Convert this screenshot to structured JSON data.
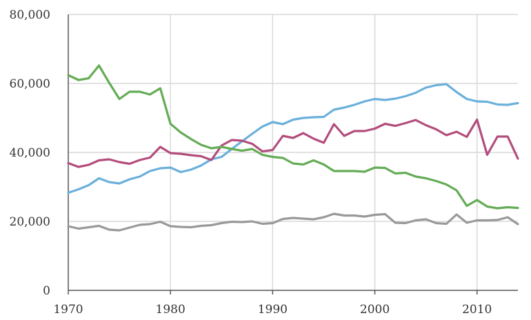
{
  "chart_data": {
    "type": "line",
    "title": "",
    "xlabel": "",
    "ylabel": "",
    "xlim": [
      1970,
      2014
    ],
    "ylim": [
      0,
      80000
    ],
    "x_ticks": [
      1970,
      1980,
      1990,
      2000,
      2010
    ],
    "y_ticks": [
      0,
      20000,
      40000,
      60000,
      80000
    ],
    "x_tick_labels": [
      "1970",
      "1980",
      "1990",
      "2000",
      "2010"
    ],
    "y_tick_labels": [
      "0",
      "20,000",
      "40,000",
      "60,000",
      "80,000"
    ],
    "grid": "vertical and horizontal",
    "legend": "none",
    "x": [
      1970,
      1971,
      1972,
      1973,
      1974,
      1975,
      1976,
      1977,
      1978,
      1979,
      1980,
      1981,
      1982,
      1983,
      1984,
      1985,
      1986,
      1987,
      1988,
      1989,
      1990,
      1991,
      1992,
      1993,
      1994,
      1995,
      1996,
      1997,
      1998,
      1999,
      2000,
      2001,
      2002,
      2003,
      2004,
      2005,
      2006,
      2007,
      2008,
      2009,
      2010,
      2011,
      2012,
      2013,
      2014
    ],
    "series": [
      {
        "color": "#6ab0db",
        "values": [
          28300,
          29300,
          30500,
          32500,
          31400,
          31000,
          32200,
          33000,
          34600,
          35400,
          35600,
          34300,
          35000,
          36200,
          38000,
          38700,
          41000,
          43200,
          45400,
          47500,
          48800,
          48200,
          49500,
          50000,
          50200,
          50300,
          52400,
          53000,
          53800,
          54800,
          55500,
          55200,
          55600,
          56300,
          57300,
          58800,
          59500,
          59800,
          57500,
          55500,
          54800,
          54700,
          53900,
          53800,
          54300
        ]
      },
      {
        "color": "#b34d7c",
        "values": [
          36900,
          35800,
          36400,
          37700,
          38000,
          37200,
          36700,
          37800,
          38500,
          41600,
          39800,
          39600,
          39200,
          38900,
          37800,
          42000,
          43600,
          43400,
          42500,
          40300,
          40700,
          44800,
          44200,
          45600,
          44000,
          42800,
          48200,
          44800,
          46200,
          46200,
          46900,
          48300,
          47700,
          48500,
          49400,
          47900,
          46700,
          45000,
          46000,
          44500,
          49500,
          39300,
          44600,
          44600,
          38200
        ]
      },
      {
        "color": "#64ac55",
        "values": [
          62400,
          61000,
          61500,
          65200,
          60200,
          55500,
          57600,
          57600,
          56800,
          58600,
          48300,
          45800,
          43900,
          42200,
          41200,
          41600,
          41000,
          40500,
          41000,
          39300,
          38700,
          38400,
          36800,
          36500,
          37700,
          36500,
          34600,
          34600,
          34600,
          34400,
          35600,
          35500,
          33900,
          34100,
          33000,
          32500,
          31700,
          30700,
          29000,
          24500,
          26200,
          24300,
          23800,
          24100,
          23900
        ]
      },
      {
        "color": "#999999",
        "values": [
          18600,
          17900,
          18300,
          18700,
          17600,
          17400,
          18200,
          19000,
          19200,
          19900,
          18600,
          18400,
          18300,
          18700,
          18900,
          19500,
          19900,
          19800,
          20000,
          19300,
          19500,
          20700,
          21000,
          20800,
          20600,
          21200,
          22200,
          21700,
          21700,
          21400,
          21900,
          22100,
          19600,
          19500,
          20300,
          20600,
          19500,
          19300,
          22000,
          19600,
          20300,
          20300,
          20400,
          21200,
          19200
        ]
      }
    ]
  }
}
